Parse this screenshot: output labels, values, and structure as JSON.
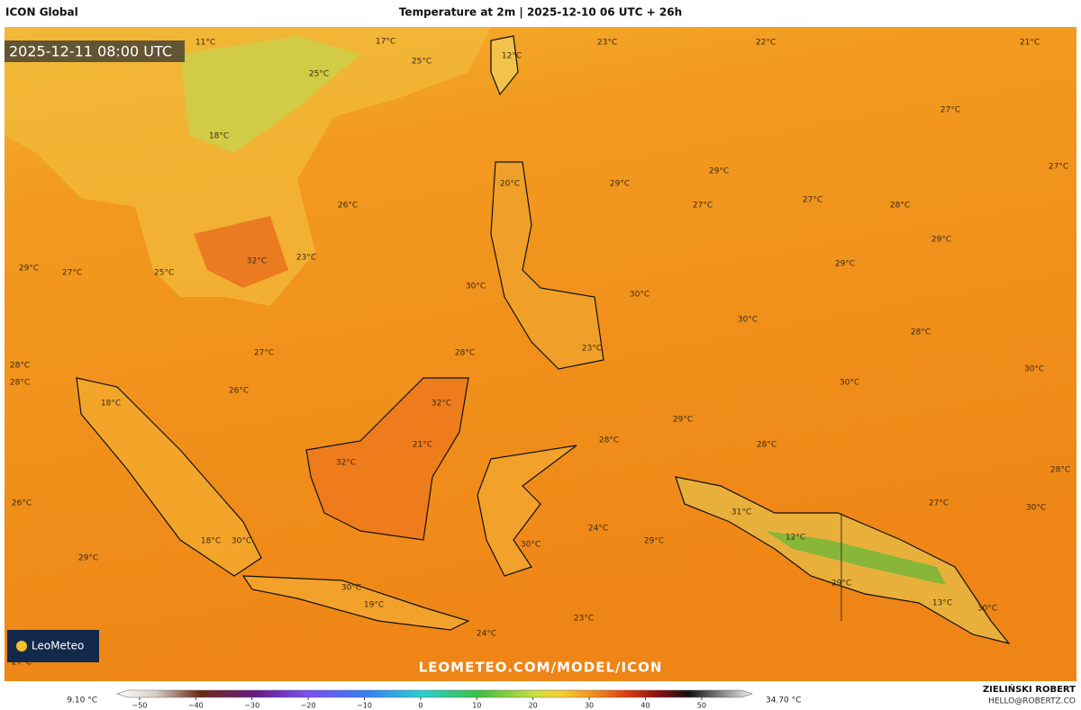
{
  "header": {
    "model": "ICON Global",
    "title": "Temperature at 2m | 2025-12-10 06 UTC + 26h"
  },
  "timestamp": "2025-12-11 08:00 UTC",
  "logo": "LeoMeteo",
  "watermark": "LEOMETEO.COM/MODEL/ICON",
  "map_labels": [
    "11°C",
    "17°C",
    "25°C",
    "25°C",
    "23°C",
    "22°C",
    "21°C",
    "12°C",
    "18°C",
    "27°C",
    "27°C",
    "29°C",
    "29°C",
    "20°C",
    "27°C",
    "27°C",
    "28°C",
    "26°C",
    "29°C",
    "32°C",
    "23°C",
    "29°C",
    "27°C",
    "25°C",
    "29°C",
    "30°C",
    "30°C",
    "30°C",
    "28°C",
    "27°C",
    "28°C",
    "23°C",
    "28°C",
    "28°C",
    "30°C",
    "30°C",
    "26°C",
    "18°C",
    "32°C",
    "29°C",
    "21°C",
    "28°C",
    "28°C",
    "32°C",
    "28°C",
    "26°C",
    "27°C",
    "30°C",
    "24°C",
    "31°C",
    "12°C",
    "18°C",
    "30°C",
    "29°C",
    "30°C",
    "29°C",
    "29°C",
    "30°C",
    "19°C",
    "13°C",
    "30°C",
    "23°C",
    "24°C",
    "27°C"
  ],
  "colorbar": {
    "min_label": "9.10 °C",
    "max_label": "34.70 °C",
    "lim": [
      -54,
      59
    ],
    "ticks": [
      {
        "value": -50,
        "label": "−50"
      },
      {
        "value": -40,
        "label": "−40"
      },
      {
        "value": -30,
        "label": "−30"
      },
      {
        "value": -20,
        "label": "−20"
      },
      {
        "value": -10,
        "label": "−10"
      },
      0,
      10,
      20,
      30,
      40,
      50
    ]
  },
  "footer": {
    "author": "ZIELIŃSKI ROBERT",
    "email": "HELLO@ROBERTZ.CO"
  }
}
